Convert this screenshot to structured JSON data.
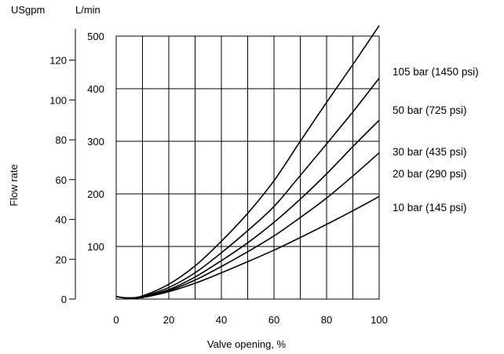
{
  "chart_data": {
    "type": "line",
    "xlabel": "Valve opening, %",
    "ylabel": "Flow rate",
    "left_axis_unit": "USgpm",
    "right_axis_unit": "L/min",
    "xlim": [
      0,
      100
    ],
    "ylim_lmin": [
      0,
      500
    ],
    "x_ticks": [
      "0",
      "20",
      "40",
      "60",
      "80",
      "100"
    ],
    "usgpm_ticks": [
      "0",
      "20",
      "40",
      "60",
      "80",
      "100",
      "120"
    ],
    "lmin_ticks": [
      "100",
      "200",
      "300",
      "400",
      "500"
    ],
    "grid": true,
    "x": [
      0,
      2,
      5,
      10,
      20,
      30,
      40,
      50,
      60,
      70,
      80,
      90,
      100
    ],
    "series": [
      {
        "name": "105 bar (1450 psi)",
        "values": [
          5,
          3,
          2,
          6,
          28,
          63,
          110,
          163,
          225,
          300,
          374,
          446,
          520
        ]
      },
      {
        "name": "50 bar (725 psi)",
        "values": [
          5,
          3,
          2,
          5,
          22,
          50,
          88,
          130,
          176,
          235,
          295,
          356,
          420
        ]
      },
      {
        "name": "30 bar (435 psi)",
        "values": [
          5,
          3,
          2,
          4,
          18,
          42,
          73,
          107,
          146,
          190,
          238,
          290,
          340
        ]
      },
      {
        "name": "20 bar (290 psi)",
        "values": [
          5,
          3,
          2,
          4,
          16,
          36,
          62,
          90,
          120,
          155,
          192,
          234,
          278
        ]
      },
      {
        "name": "10 bar (145 psi)",
        "values": [
          5,
          3,
          2,
          3,
          14,
          30,
          50,
          71,
          93,
          117,
          142,
          168,
          195
        ]
      }
    ]
  }
}
